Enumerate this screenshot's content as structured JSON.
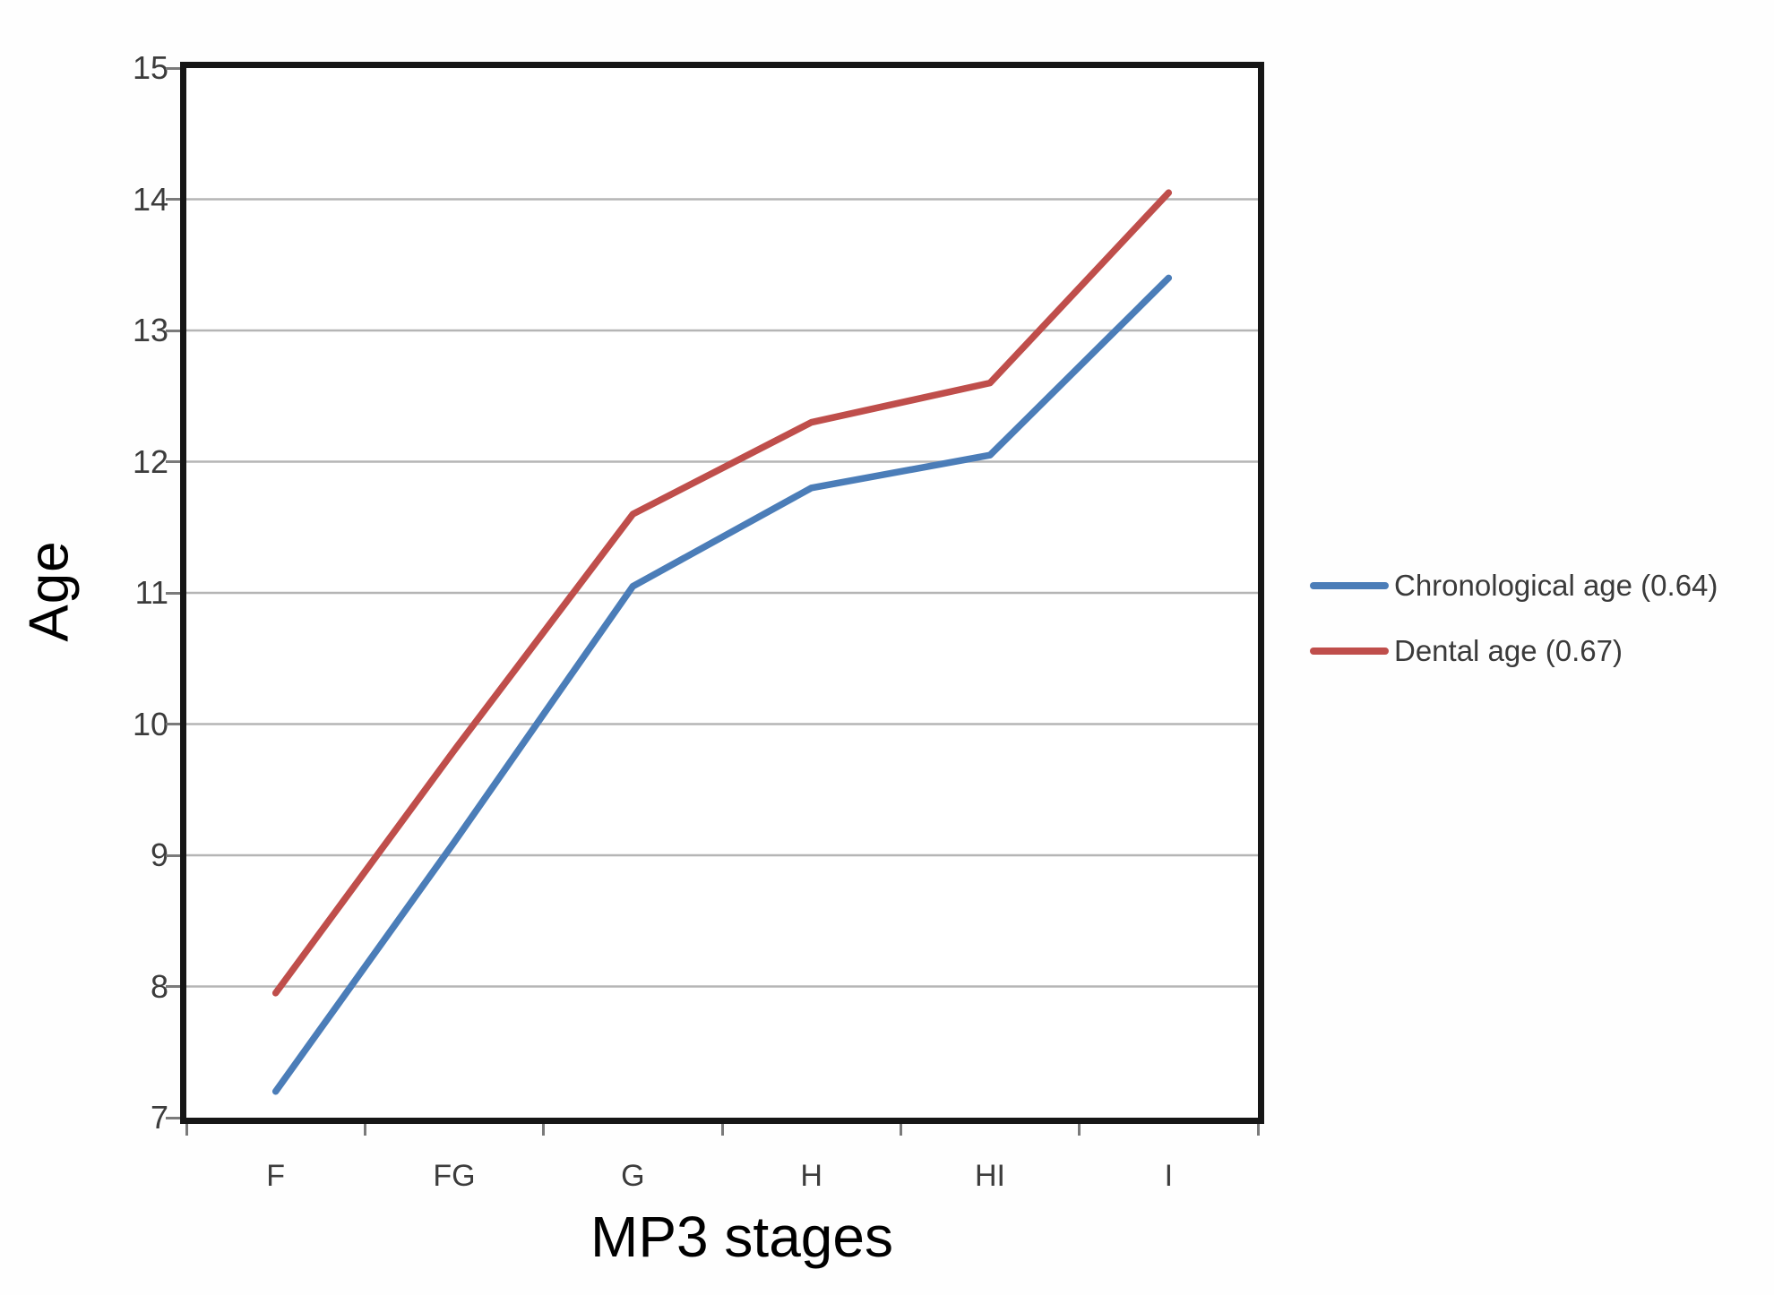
{
  "chart_data": {
    "type": "line",
    "title": "",
    "xlabel": "MP3 stages",
    "ylabel": "Age",
    "categories": [
      "F",
      "FG",
      "G",
      "H",
      "HI",
      "I"
    ],
    "series": [
      {
        "name": "Chronological age (0.64)",
        "color": "#4b7db8",
        "values": [
          7.2,
          9.1,
          11.05,
          11.8,
          12.05,
          13.4
        ]
      },
      {
        "name": "Dental age (0.67)",
        "color": "#bf4e4b",
        "values": [
          7.95,
          9.8,
          11.6,
          12.3,
          12.6,
          14.05
        ]
      }
    ],
    "ylim": [
      7,
      15
    ],
    "yticks": [
      15,
      14,
      13,
      12,
      11,
      10,
      9,
      8,
      7
    ],
    "grid": true,
    "legend_position": "right"
  },
  "colors": {
    "gridline": "#b5b5b5",
    "plot_border": "#161616",
    "tick_mark": "#7a7a7a",
    "tick_text": "#3c3c3c",
    "legend_text": "#3a3a3a",
    "title_text": "#000000"
  }
}
